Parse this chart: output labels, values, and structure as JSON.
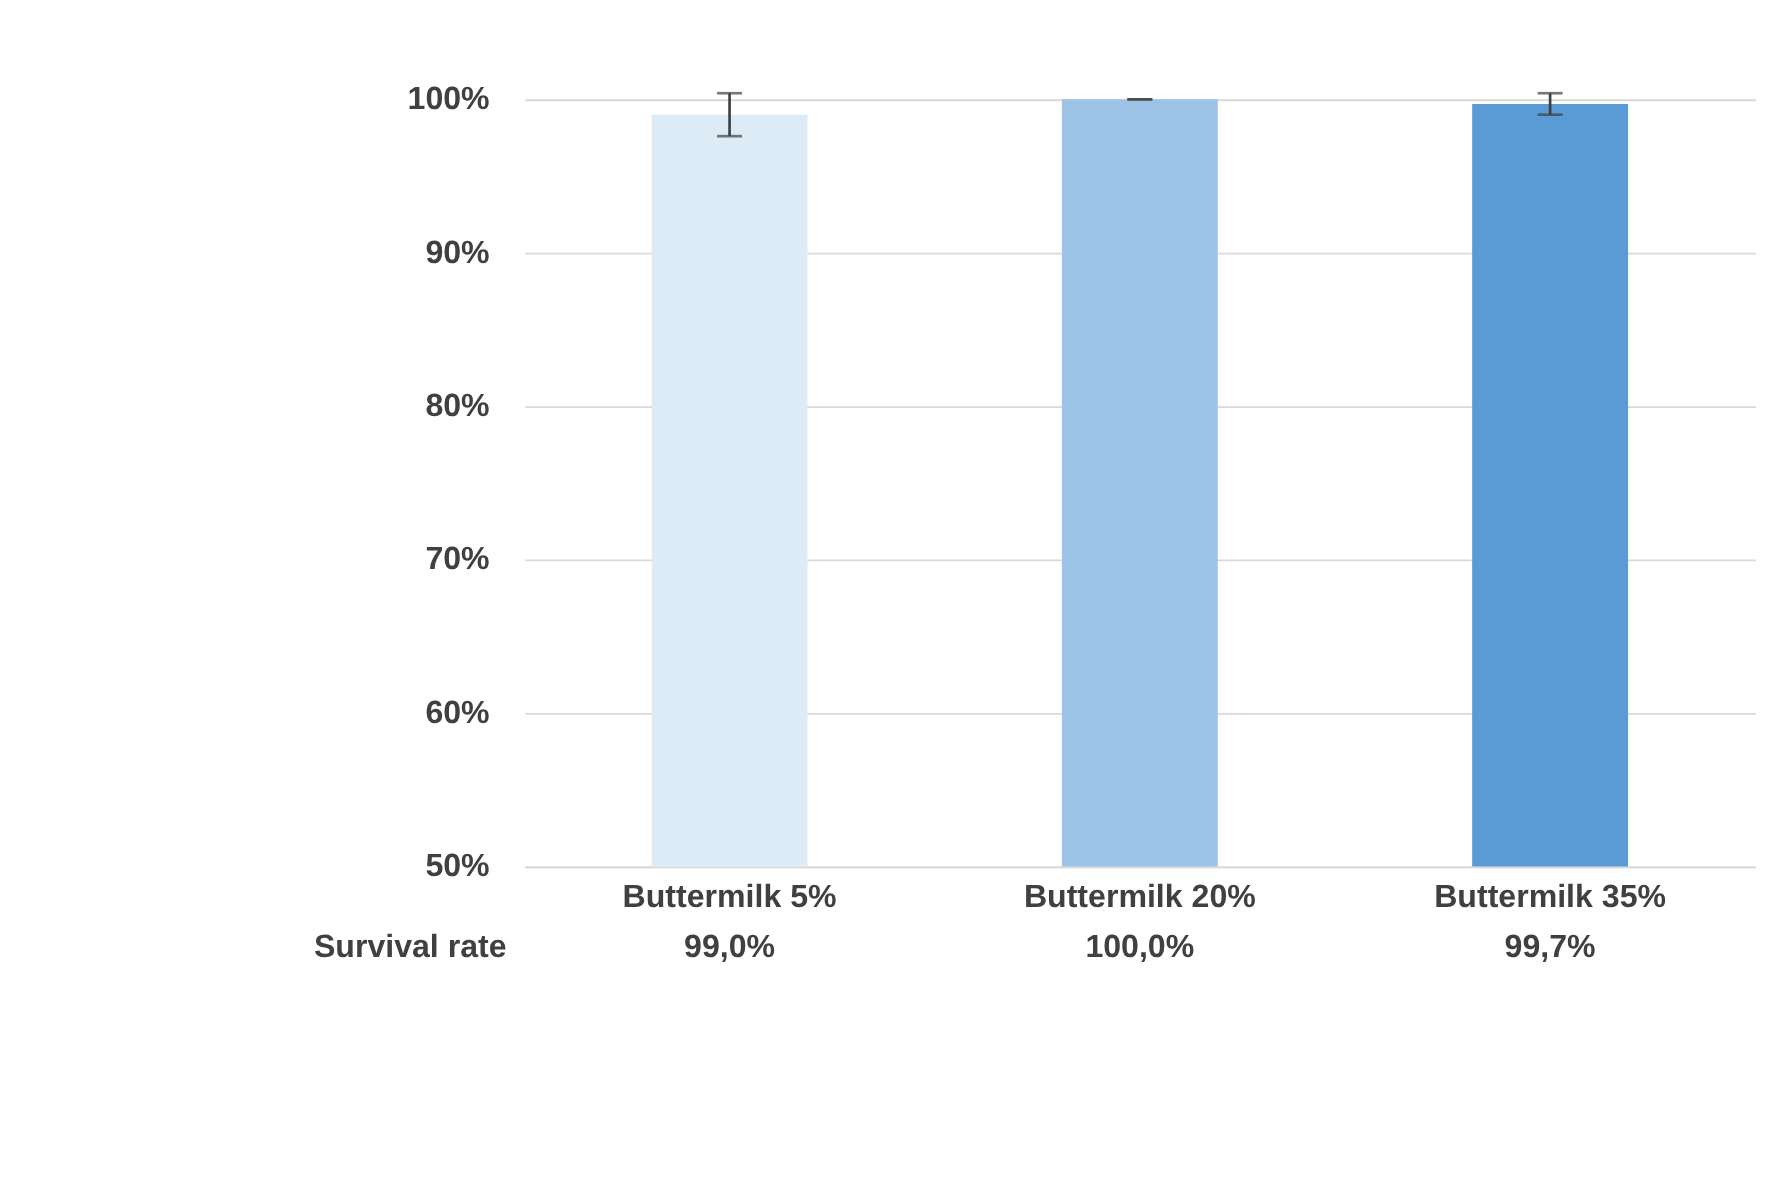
{
  "chart_data": {
    "type": "bar",
    "categories": [
      "Buttermilk 5%",
      "Buttermilk 20%",
      "Buttermilk 35%"
    ],
    "series": [
      {
        "name": "Survival rate",
        "values": [
          99.0,
          100.0,
          99.7
        ],
        "errors": [
          1.4,
          0,
          0.7
        ],
        "value_labels": [
          "99,0%",
          "100,0%",
          "99,7%"
        ]
      }
    ],
    "colors": [
      "#ddebf7",
      "#9dc3e6",
      "#5b9bd5"
    ],
    "ylim": [
      50,
      100
    ],
    "yticks": [
      {
        "value": 50,
        "label": "50%"
      },
      {
        "value": 60,
        "label": "60%"
      },
      {
        "value": 70,
        "label": "70%"
      },
      {
        "value": 80,
        "label": "80%"
      },
      {
        "value": 90,
        "label": "90%"
      },
      {
        "value": 100,
        "label": "100%"
      }
    ],
    "grid": "y",
    "legend": false
  }
}
